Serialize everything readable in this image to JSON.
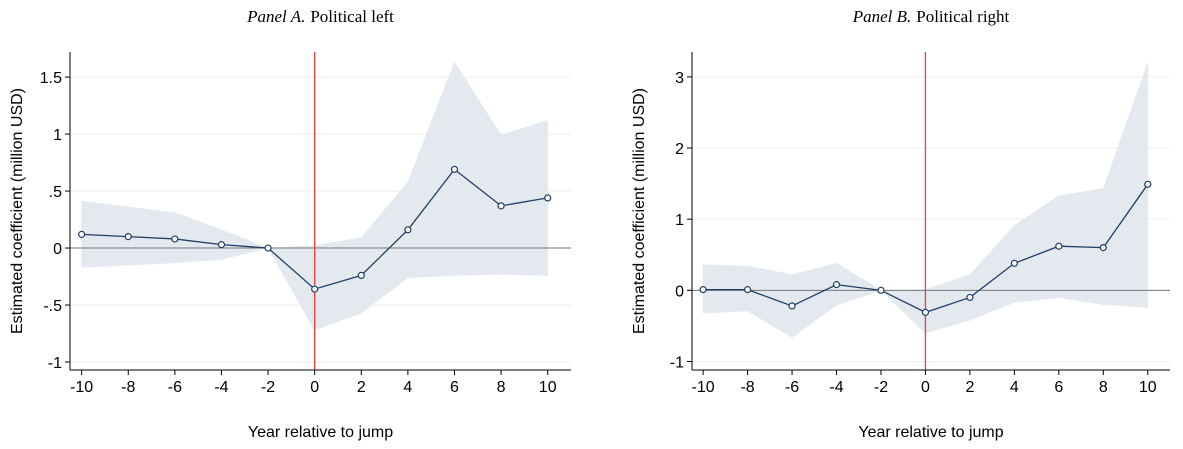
{
  "chart_data": [
    {
      "type": "line",
      "panel": "Panel A.",
      "title": "Political left",
      "ylabel": "Estimated coefficient (million USD)",
      "xlabel": "Year relative to jump",
      "x": [
        -10,
        -8,
        -6,
        -4,
        -2,
        0,
        2,
        4,
        6,
        8,
        10
      ],
      "values": [
        0.12,
        0.1,
        0.08,
        0.03,
        0,
        -0.36,
        -0.24,
        0.16,
        0.69,
        0.37,
        0.44
      ],
      "upper": [
        0.41,
        0.36,
        0.31,
        0.16,
        0,
        0.02,
        0.09,
        0.58,
        1.63,
        0.99,
        1.12
      ],
      "lower": [
        -0.17,
        -0.15,
        -0.13,
        -0.1,
        0,
        -0.72,
        -0.57,
        -0.26,
        -0.24,
        -0.23,
        -0.24
      ],
      "color": "#1f3f66",
      "band_color": "#e3e9ef",
      "vline": 0,
      "vline_color": "#f03c3c",
      "hline": 0,
      "xlim": [
        -10.5,
        11
      ],
      "xticks": [
        -10,
        -8,
        -6,
        -4,
        -2,
        0,
        2,
        4,
        6,
        8,
        10
      ],
      "ylim": [
        -1.07,
        1.72
      ],
      "yticks": [
        -1,
        {
          "value": -0.5,
          "label": "-.5"
        },
        0,
        {
          "value": 0.5,
          "label": ".5"
        },
        1,
        1.5
      ]
    },
    {
      "type": "line",
      "panel": "Panel B.",
      "title": "Political right",
      "ylabel": "Estimated coefficient (million USD)",
      "xlabel": "Year relative to jump",
      "x": [
        -10,
        -8,
        -6,
        -4,
        -2,
        0,
        2,
        4,
        6,
        8,
        10
      ],
      "values": [
        0.01,
        0.01,
        -0.22,
        0.08,
        0,
        -0.31,
        -0.1,
        0.38,
        0.62,
        0.6,
        1.49
      ],
      "upper": [
        0.36,
        0.34,
        0.22,
        0.38,
        0,
        0.01,
        0.22,
        0.91,
        1.33,
        1.43,
        3.2
      ],
      "lower": [
        -0.32,
        -0.29,
        -0.66,
        -0.21,
        0,
        -0.6,
        -0.42,
        -0.17,
        -0.1,
        -0.2,
        -0.24
      ],
      "color": "#1f3f66",
      "band_color": "#e3e9ef",
      "vline": 0,
      "vline_color": "#f03c3c",
      "hline": 0,
      "xlim": [
        -10.5,
        11
      ],
      "xticks": [
        -10,
        -8,
        -6,
        -4,
        -2,
        0,
        2,
        4,
        6,
        8,
        10
      ],
      "ylim": [
        -1.12,
        3.35
      ],
      "yticks": [
        -1,
        0,
        1,
        2,
        3
      ]
    }
  ]
}
